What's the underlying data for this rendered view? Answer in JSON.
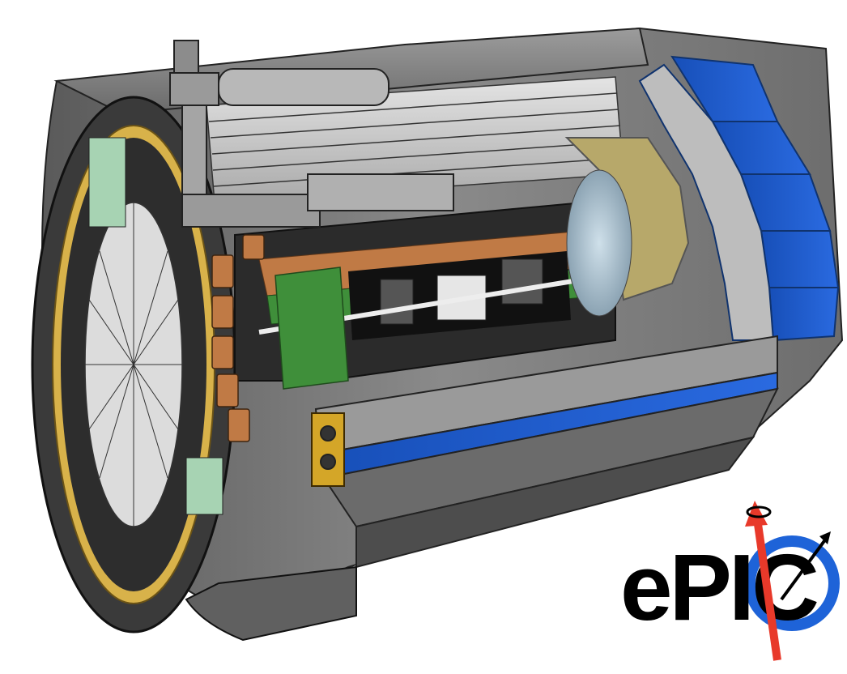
{
  "image": {
    "subject": "detector-cutaway-illustration"
  },
  "logo": {
    "text": "ePIC",
    "colors": {
      "text": "#000000",
      "ring": "#1e63d8",
      "spin_arrow": "#e8392a",
      "momentum_arrow": "#000000"
    }
  },
  "colors": {
    "calorimeter_blue": "#1f5fd0",
    "steel_gray": "#8c8c8c",
    "dark_steel": "#4a4a4a",
    "light_steel": "#c9c9c9",
    "copper": "#c07a45",
    "green_layer": "#3f8f3a",
    "gold_trim": "#d4a628",
    "khaki": "#b7a86a"
  }
}
